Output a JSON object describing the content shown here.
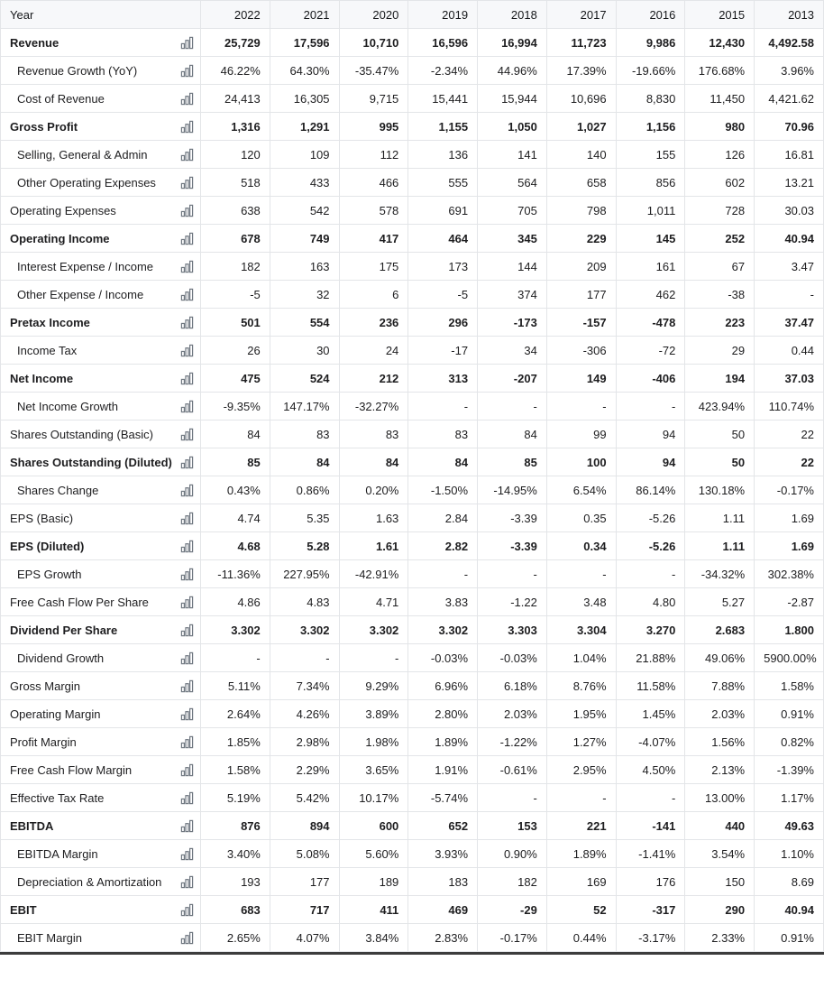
{
  "colors": {
    "positive": "#0d7a3e",
    "negative": "#c92a2a"
  },
  "table": {
    "header_label": "Year",
    "years": [
      "2022",
      "2021",
      "2020",
      "2019",
      "2018",
      "2017",
      "2016",
      "2015",
      "2013"
    ],
    "rows": [
      {
        "label": "Revenue",
        "bold": true,
        "indent": false,
        "values": [
          "25,729",
          "17,596",
          "10,710",
          "16,596",
          "16,994",
          "11,723",
          "9,986",
          "12,430",
          "4,492.58"
        ]
      },
      {
        "label": "Revenue Growth (YoY)",
        "bold": false,
        "indent": true,
        "values": [
          "46.22%",
          "64.30%",
          "-35.47%",
          "-2.34%",
          "44.96%",
          "17.39%",
          "-19.66%",
          "176.68%",
          "3.96%"
        ],
        "styles": [
          "g",
          "g",
          "r",
          "r",
          "g",
          "g",
          "r",
          "g",
          "g"
        ]
      },
      {
        "label": "Cost of Revenue",
        "bold": false,
        "indent": true,
        "values": [
          "24,413",
          "16,305",
          "9,715",
          "15,441",
          "15,944",
          "10,696",
          "8,830",
          "11,450",
          "4,421.62"
        ]
      },
      {
        "label": "Gross Profit",
        "bold": true,
        "indent": false,
        "values": [
          "1,316",
          "1,291",
          "995",
          "1,155",
          "1,050",
          "1,027",
          "1,156",
          "980",
          "70.96"
        ]
      },
      {
        "label": "Selling, General & Admin",
        "bold": false,
        "indent": true,
        "values": [
          "120",
          "109",
          "112",
          "136",
          "141",
          "140",
          "155",
          "126",
          "16.81"
        ]
      },
      {
        "label": "Other Operating Expenses",
        "bold": false,
        "indent": true,
        "values": [
          "518",
          "433",
          "466",
          "555",
          "564",
          "658",
          "856",
          "602",
          "13.21"
        ]
      },
      {
        "label": "Operating Expenses",
        "bold": false,
        "indent": false,
        "values": [
          "638",
          "542",
          "578",
          "691",
          "705",
          "798",
          "1,011",
          "728",
          "30.03"
        ]
      },
      {
        "label": "Operating Income",
        "bold": true,
        "indent": false,
        "values": [
          "678",
          "749",
          "417",
          "464",
          "345",
          "229",
          "145",
          "252",
          "40.94"
        ]
      },
      {
        "label": "Interest Expense / Income",
        "bold": false,
        "indent": true,
        "values": [
          "182",
          "163",
          "175",
          "173",
          "144",
          "209",
          "161",
          "67",
          "3.47"
        ]
      },
      {
        "label": "Other Expense / Income",
        "bold": false,
        "indent": true,
        "values": [
          "-5",
          "32",
          "6",
          "-5",
          "374",
          "177",
          "462",
          "-38",
          "-"
        ]
      },
      {
        "label": "Pretax Income",
        "bold": true,
        "indent": false,
        "values": [
          "501",
          "554",
          "236",
          "296",
          "-173",
          "-157",
          "-478",
          "223",
          "37.47"
        ]
      },
      {
        "label": "Income Tax",
        "bold": false,
        "indent": true,
        "values": [
          "26",
          "30",
          "24",
          "-17",
          "34",
          "-306",
          "-72",
          "29",
          "0.44"
        ]
      },
      {
        "label": "Net Income",
        "bold": true,
        "indent": false,
        "values": [
          "475",
          "524",
          "212",
          "313",
          "-207",
          "149",
          "-406",
          "194",
          "37.03"
        ]
      },
      {
        "label": "Net Income Growth",
        "bold": false,
        "indent": true,
        "values": [
          "-9.35%",
          "147.17%",
          "-32.27%",
          "-",
          "-",
          "-",
          "-",
          "423.94%",
          "110.74%"
        ],
        "styles": [
          "r",
          "g",
          "r",
          "",
          "",
          "",
          "",
          "g",
          "g"
        ]
      },
      {
        "label": "Shares Outstanding (Basic)",
        "bold": false,
        "indent": false,
        "values": [
          "84",
          "83",
          "83",
          "83",
          "84",
          "99",
          "94",
          "50",
          "22"
        ]
      },
      {
        "label": "Shares Outstanding (Diluted)",
        "bold": true,
        "indent": false,
        "values": [
          "85",
          "84",
          "84",
          "84",
          "85",
          "100",
          "94",
          "50",
          "22"
        ]
      },
      {
        "label": "Shares Change",
        "bold": false,
        "indent": true,
        "values": [
          "0.43%",
          "0.86%",
          "0.20%",
          "-1.50%",
          "-14.95%",
          "6.54%",
          "86.14%",
          "130.18%",
          "-0.17%"
        ],
        "styles": [
          "r",
          "r",
          "r",
          "g",
          "g",
          "r",
          "r",
          "r",
          "g"
        ]
      },
      {
        "label": "EPS (Basic)",
        "bold": false,
        "indent": false,
        "values": [
          "4.74",
          "5.35",
          "1.63",
          "2.84",
          "-3.39",
          "0.35",
          "-5.26",
          "1.11",
          "1.69"
        ]
      },
      {
        "label": "EPS (Diluted)",
        "bold": true,
        "indent": false,
        "values": [
          "4.68",
          "5.28",
          "1.61",
          "2.82",
          "-3.39",
          "0.34",
          "-5.26",
          "1.11",
          "1.69"
        ]
      },
      {
        "label": "EPS Growth",
        "bold": false,
        "indent": true,
        "values": [
          "-11.36%",
          "227.95%",
          "-42.91%",
          "-",
          "-",
          "-",
          "-",
          "-34.32%",
          "302.38%"
        ],
        "styles": [
          "r",
          "g",
          "r",
          "",
          "",
          "",
          "",
          "r",
          "g"
        ]
      },
      {
        "label": "Free Cash Flow Per Share",
        "bold": false,
        "indent": false,
        "values": [
          "4.86",
          "4.83",
          "4.71",
          "3.83",
          "-1.22",
          "3.48",
          "4.80",
          "5.27",
          "-2.87"
        ]
      },
      {
        "label": "Dividend Per Share",
        "bold": true,
        "indent": false,
        "values": [
          "3.302",
          "3.302",
          "3.302",
          "3.302",
          "3.303",
          "3.304",
          "3.270",
          "2.683",
          "1.800"
        ]
      },
      {
        "label": "Dividend Growth",
        "bold": false,
        "indent": true,
        "values": [
          "-",
          "-",
          "-",
          "-0.03%",
          "-0.03%",
          "1.04%",
          "21.88%",
          "49.06%",
          "5900.00%"
        ],
        "styles": [
          "",
          "",
          "",
          "r",
          "r",
          "g",
          "g",
          "g",
          "g"
        ]
      },
      {
        "label": "Gross Margin",
        "bold": false,
        "indent": false,
        "values": [
          "5.11%",
          "7.34%",
          "9.29%",
          "6.96%",
          "6.18%",
          "8.76%",
          "11.58%",
          "7.88%",
          "1.58%"
        ]
      },
      {
        "label": "Operating Margin",
        "bold": false,
        "indent": false,
        "values": [
          "2.64%",
          "4.26%",
          "3.89%",
          "2.80%",
          "2.03%",
          "1.95%",
          "1.45%",
          "2.03%",
          "0.91%"
        ]
      },
      {
        "label": "Profit Margin",
        "bold": false,
        "indent": false,
        "values": [
          "1.85%",
          "2.98%",
          "1.98%",
          "1.89%",
          "-1.22%",
          "1.27%",
          "-4.07%",
          "1.56%",
          "0.82%"
        ]
      },
      {
        "label": "Free Cash Flow Margin",
        "bold": false,
        "indent": false,
        "values": [
          "1.58%",
          "2.29%",
          "3.65%",
          "1.91%",
          "-0.61%",
          "2.95%",
          "4.50%",
          "2.13%",
          "-1.39%"
        ]
      },
      {
        "label": "Effective Tax Rate",
        "bold": false,
        "indent": false,
        "values": [
          "5.19%",
          "5.42%",
          "10.17%",
          "-5.74%",
          "-",
          "-",
          "-",
          "13.00%",
          "1.17%"
        ]
      },
      {
        "label": "EBITDA",
        "bold": true,
        "indent": false,
        "values": [
          "876",
          "894",
          "600",
          "652",
          "153",
          "221",
          "-141",
          "440",
          "49.63"
        ]
      },
      {
        "label": "EBITDA Margin",
        "bold": false,
        "indent": true,
        "values": [
          "3.40%",
          "5.08%",
          "5.60%",
          "3.93%",
          "0.90%",
          "1.89%",
          "-1.41%",
          "3.54%",
          "1.10%"
        ]
      },
      {
        "label": "Depreciation & Amortization",
        "bold": false,
        "indent": true,
        "values": [
          "193",
          "177",
          "189",
          "183",
          "182",
          "169",
          "176",
          "150",
          "8.69"
        ]
      },
      {
        "label": "EBIT",
        "bold": true,
        "indent": false,
        "values": [
          "683",
          "717",
          "411",
          "469",
          "-29",
          "52",
          "-317",
          "290",
          "40.94"
        ]
      },
      {
        "label": "EBIT Margin",
        "bold": false,
        "indent": true,
        "values": [
          "2.65%",
          "4.07%",
          "3.84%",
          "2.83%",
          "-0.17%",
          "0.44%",
          "-3.17%",
          "2.33%",
          "0.91%"
        ]
      }
    ]
  }
}
